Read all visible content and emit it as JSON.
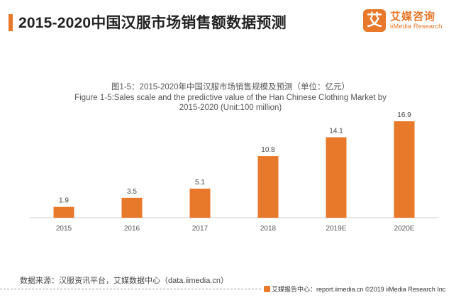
{
  "header": {
    "title": "2015-2020中国汉服市场销售额数据预测",
    "logo_mark": "艾",
    "logo_cn": "艾媒咨询",
    "logo_en": "iiMedia Research"
  },
  "chart_data": {
    "type": "bar",
    "title_cn": "图1-5：2015-2020年中国汉服市场销售规模及预测（单位：亿元）",
    "title_en_line1": "Figure 1-5:Sales scale and the predictive value of the Han Chinese Clothing Market by",
    "title_en_line2": "2015-2020 (Unit:100 million)",
    "categories": [
      "2015",
      "2016",
      "2017",
      "2018",
      "2019E",
      "2020E"
    ],
    "values": [
      1.9,
      3.5,
      5.1,
      10.8,
      14.1,
      16.9
    ],
    "value_labels": [
      "1.9",
      "3.5",
      "5.1",
      "10.8",
      "14.1",
      "16.9"
    ],
    "xlabel": "",
    "ylabel": "",
    "ylim": [
      0,
      16.9
    ],
    "grid": false,
    "legend": "none",
    "bar_color": "#e8782a"
  },
  "footer": {
    "source": "数据来源：汉服资讯平台，艾媒数据中心（data.iimedia.cn）",
    "credit": "艾媒报告中心：report.iimedia.cn ©2019 iiMedia Research Inc"
  }
}
